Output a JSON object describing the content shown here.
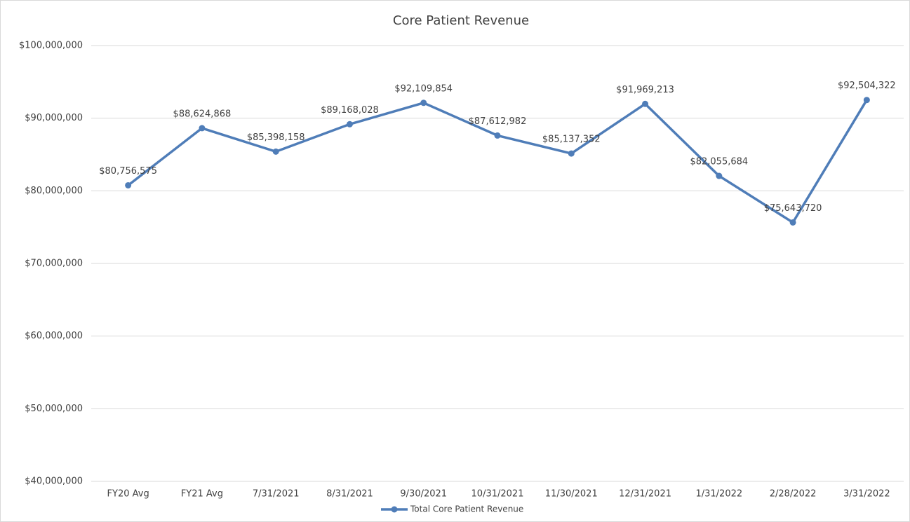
{
  "chart_data": {
    "type": "line",
    "title": "Core Patient Revenue",
    "categories": [
      "FY20 Avg",
      "FY21 Avg",
      "7/31/2021",
      "8/31/2021",
      "9/30/2021",
      "10/31/2021",
      "11/30/2021",
      "12/31/2021",
      "1/31/2022",
      "2/28/2022",
      "3/31/2022"
    ],
    "series": [
      {
        "name": "Total Core Patient Revenue",
        "color": "#4f7db8",
        "values": [
          80756575,
          88624868,
          85398158,
          89168028,
          92109854,
          87612982,
          85137352,
          91969213,
          82055684,
          75643720,
          92504322
        ],
        "value_labels": [
          "$80,756,575",
          "$88,624,868",
          "$85,398,158",
          "$89,168,028",
          "$92,109,854",
          "$87,612,982",
          "$85,137,352",
          "$91,969,213",
          "$82,055,684",
          "$75,643,720",
          "$92,504,322"
        ]
      }
    ],
    "ylim": [
      40000000,
      100000000
    ],
    "yticks": [
      {
        "value": 40000000,
        "label": "$40,000,000"
      },
      {
        "value": 50000000,
        "label": "$50,000,000"
      },
      {
        "value": 60000000,
        "label": "$60,000,000"
      },
      {
        "value": 70000000,
        "label": "$70,000,000"
      },
      {
        "value": 80000000,
        "label": "$80,000,000"
      },
      {
        "value": 90000000,
        "label": "$90,000,000"
      },
      {
        "value": 100000000,
        "label": "$100,000,000"
      }
    ],
    "grid": true,
    "legend": "bottom"
  }
}
